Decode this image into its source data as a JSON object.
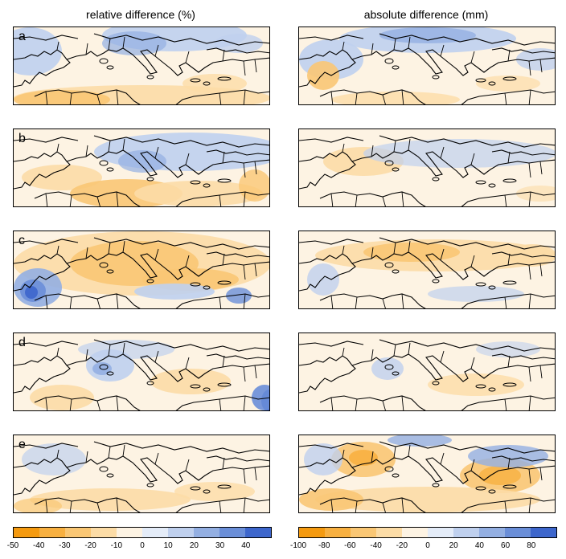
{
  "titles": {
    "left": "relative difference (%)",
    "right": "absolute difference (mm)"
  },
  "panels": [
    {
      "letter": "a"
    },
    {
      "letter": "b"
    },
    {
      "letter": "c"
    },
    {
      "letter": "d"
    },
    {
      "letter": "e"
    }
  ],
  "colorbars": {
    "left": {
      "ticks": [
        "-50",
        "-40",
        "-30",
        "-20",
        "-10",
        "0",
        "10",
        "20",
        "30",
        "40"
      ],
      "colors": [
        "#f59a0f",
        "#f8b040",
        "#fac774",
        "#fcdca6",
        "#fdf3e3",
        "#e4ecf8",
        "#bfd0ee",
        "#93afe2",
        "#6a8ed8",
        "#3d66cc"
      ]
    },
    "right": {
      "ticks": [
        "-100",
        "-80",
        "-60",
        "-40",
        "-20",
        "0",
        "20",
        "40",
        "60",
        "80"
      ],
      "colors": [
        "#f59a0f",
        "#f8b040",
        "#fac774",
        "#fcdca6",
        "#fdf3e3",
        "#e4ecf8",
        "#bfd0ee",
        "#93afe2",
        "#6a8ed8",
        "#3d66cc"
      ]
    }
  }
}
